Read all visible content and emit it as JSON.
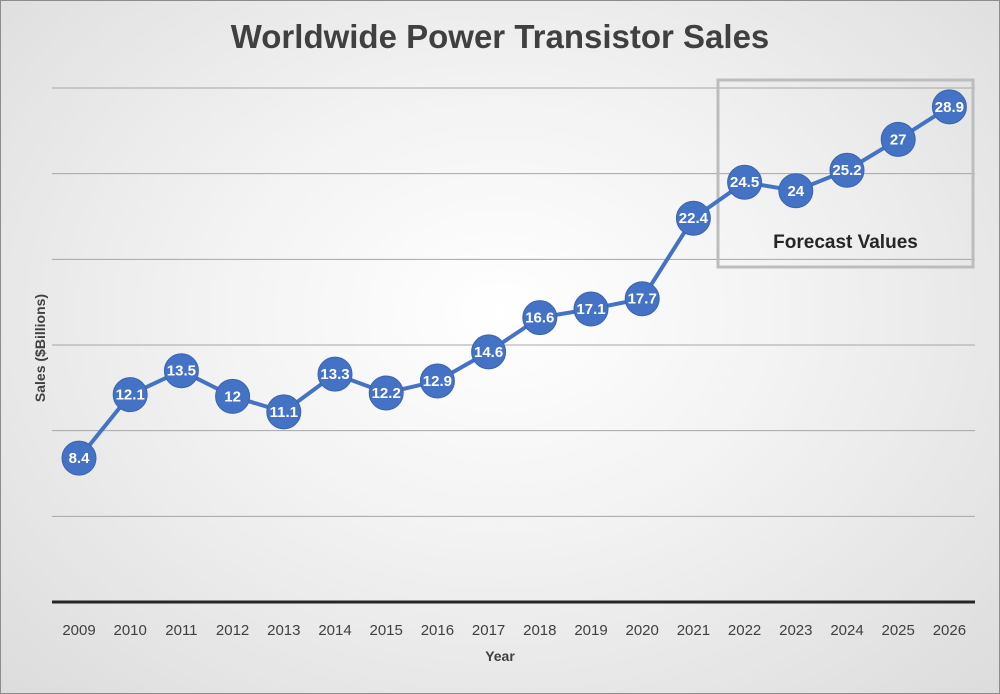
{
  "chart_data": {
    "type": "line",
    "title": "Worldwide Power Transistor Sales",
    "xlabel": "Year",
    "ylabel": "Sales ($Billions)",
    "categories": [
      "2009",
      "2010",
      "2011",
      "2012",
      "2013",
      "2014",
      "2015",
      "2016",
      "2017",
      "2018",
      "2019",
      "2020",
      "2021",
      "2022",
      "2023",
      "2024",
      "2025",
      "2026"
    ],
    "series": [
      {
        "color": "#4472C4",
        "values": [
          8.4,
          12.1,
          13.5,
          12,
          11.1,
          13.3,
          12.2,
          12.9,
          14.6,
          16.6,
          17.1,
          17.7,
          22.4,
          24.5,
          24,
          25.2,
          27,
          28.9
        ],
        "labels": [
          "8.4",
          "12.1",
          "13.5",
          "12",
          "11.1",
          "13.3",
          "12.2",
          "12.9",
          "14.6",
          "16.6",
          "17.1",
          "17.7",
          "22.4",
          "24.5",
          "24",
          "25.2",
          "27",
          "28.9"
        ]
      }
    ],
    "ylim": [
      0,
      30
    ],
    "grid": true,
    "y_tick_labels_shown": false,
    "annotation": {
      "text": "Forecast Values",
      "range": [
        "2022",
        "2026"
      ]
    }
  }
}
